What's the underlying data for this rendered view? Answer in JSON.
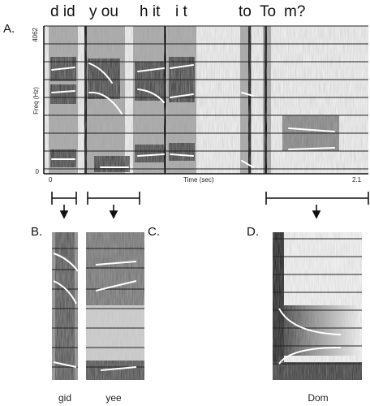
{
  "figure": {
    "words": [
      "d id",
      "y ou",
      "h it",
      "i t",
      "to",
      "To",
      "m?"
    ],
    "panels": {
      "a": "A.",
      "b": "B.",
      "c": "C.",
      "d": "D."
    },
    "axes": {
      "ylabel": "Freq (Hz)",
      "ytick_top": "4062",
      "ytick_bottom": "0",
      "xlabel": "Time (sec)",
      "xtick_left": "0",
      "xtick_right": "2.1"
    },
    "captions": {
      "b": "gid",
      "c": "yee",
      "d": "Dom"
    }
  }
}
